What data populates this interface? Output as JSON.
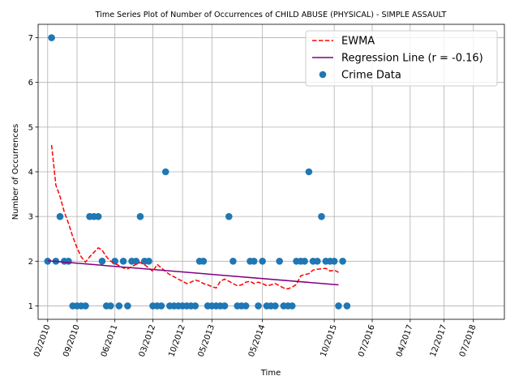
{
  "chart_data": {
    "type": "scatter",
    "title": "Time Series Plot of Number of Occurrences of CHILD ABUSE (PHYSICAL) - SIMPLE ASSAULT",
    "xlabel": "Time",
    "ylabel": "Number of Occurrences",
    "xlim": [
      "2009-11-24",
      "2019-02-10"
    ],
    "ylim": [
      0.7,
      7.3
    ],
    "grid": true,
    "legend_position": "top-right",
    "x_ticks": [
      {
        "date": "2010-02-01",
        "label": "02/2010"
      },
      {
        "date": "2010-09-01",
        "label": "09/2010"
      },
      {
        "date": "2011-06-01",
        "label": "06/2011"
      },
      {
        "date": "2012-03-01",
        "label": "03/2012"
      },
      {
        "date": "2012-10-01",
        "label": "10/2012"
      },
      {
        "date": "2013-05-01",
        "label": "05/2013"
      },
      {
        "date": "2014-05-01",
        "label": "05/2014"
      },
      {
        "date": "2015-10-01",
        "label": "10/2015"
      },
      {
        "date": "2016-07-01",
        "label": "07/2016"
      },
      {
        "date": "2017-04-01",
        "label": "04/2017"
      },
      {
        "date": "2017-12-01",
        "label": "12/2017"
      },
      {
        "date": "2018-07-01",
        "label": "07/2018"
      }
    ],
    "y_ticks": [
      1,
      2,
      3,
      4,
      5,
      6,
      7
    ],
    "series": [
      {
        "name": "Crime Data",
        "kind": "scatter",
        "color": "#1f77b4",
        "points": [
          [
            "2010-02-01",
            2
          ],
          [
            "2010-03-01",
            7
          ],
          [
            "2010-04-01",
            2
          ],
          [
            "2010-05-01",
            3
          ],
          [
            "2010-06-01",
            2
          ],
          [
            "2010-07-01",
            2
          ],
          [
            "2010-08-01",
            1
          ],
          [
            "2010-09-01",
            1
          ],
          [
            "2010-10-01",
            1
          ],
          [
            "2010-11-01",
            1
          ],
          [
            "2010-12-01",
            3
          ],
          [
            "2011-01-01",
            3
          ],
          [
            "2011-02-01",
            3
          ],
          [
            "2011-03-01",
            2
          ],
          [
            "2011-04-01",
            1
          ],
          [
            "2011-05-01",
            1
          ],
          [
            "2011-06-01",
            2
          ],
          [
            "2011-07-01",
            1
          ],
          [
            "2011-08-01",
            2
          ],
          [
            "2011-09-01",
            1
          ],
          [
            "2011-10-01",
            2
          ],
          [
            "2011-11-01",
            2
          ],
          [
            "2011-12-01",
            3
          ],
          [
            "2012-01-01",
            2
          ],
          [
            "2012-02-01",
            2
          ],
          [
            "2012-03-01",
            1
          ],
          [
            "2012-04-01",
            1
          ],
          [
            "2012-05-01",
            1
          ],
          [
            "2012-06-01",
            4
          ],
          [
            "2012-07-01",
            1
          ],
          [
            "2012-08-01",
            1
          ],
          [
            "2012-09-01",
            1
          ],
          [
            "2012-10-01",
            1
          ],
          [
            "2012-11-01",
            1
          ],
          [
            "2012-12-01",
            1
          ],
          [
            "2013-01-01",
            1
          ],
          [
            "2013-02-01",
            2
          ],
          [
            "2013-03-01",
            2
          ],
          [
            "2013-04-01",
            1
          ],
          [
            "2013-05-01",
            1
          ],
          [
            "2013-06-01",
            1
          ],
          [
            "2013-07-01",
            1
          ],
          [
            "2013-08-01",
            1
          ],
          [
            "2013-09-01",
            3
          ],
          [
            "2013-10-01",
            2
          ],
          [
            "2013-11-01",
            1
          ],
          [
            "2013-12-01",
            1
          ],
          [
            "2014-01-01",
            1
          ],
          [
            "2014-02-01",
            2
          ],
          [
            "2014-03-01",
            2
          ],
          [
            "2014-04-01",
            1
          ],
          [
            "2014-05-01",
            2
          ],
          [
            "2014-06-01",
            1
          ],
          [
            "2014-07-01",
            1
          ],
          [
            "2014-08-01",
            1
          ],
          [
            "2014-09-01",
            2
          ],
          [
            "2014-10-01",
            1
          ],
          [
            "2014-11-01",
            1
          ],
          [
            "2014-12-01",
            1
          ],
          [
            "2015-01-01",
            2
          ],
          [
            "2015-02-01",
            2
          ],
          [
            "2015-03-01",
            2
          ],
          [
            "2015-04-01",
            4
          ],
          [
            "2015-05-01",
            2
          ],
          [
            "2015-06-01",
            2
          ],
          [
            "2015-07-01",
            3
          ],
          [
            "2015-08-01",
            2
          ],
          [
            "2015-09-01",
            2
          ],
          [
            "2015-10-01",
            2
          ],
          [
            "2015-11-01",
            1
          ],
          [
            "2015-12-01",
            2
          ],
          [
            "2016-01-01",
            1
          ]
        ]
      },
      {
        "name": "EWMA",
        "kind": "line",
        "color": "#ff0000",
        "dash": true,
        "points": [
          [
            "2010-03-01",
            4.6
          ],
          [
            "2010-04-01",
            3.7
          ],
          [
            "2010-05-01",
            3.45
          ],
          [
            "2010-06-01",
            3.1
          ],
          [
            "2010-07-01",
            2.85
          ],
          [
            "2010-08-01",
            2.55
          ],
          [
            "2010-09-01",
            2.3
          ],
          [
            "2010-10-01",
            2.1
          ],
          [
            "2010-11-01",
            1.98
          ],
          [
            "2010-12-01",
            2.1
          ],
          [
            "2011-01-01",
            2.2
          ],
          [
            "2011-02-01",
            2.3
          ],
          [
            "2011-03-01",
            2.25
          ],
          [
            "2011-04-01",
            2.1
          ],
          [
            "2011-05-01",
            2.0
          ],
          [
            "2011-06-01",
            1.95
          ],
          [
            "2011-07-01",
            1.9
          ],
          [
            "2011-08-01",
            1.85
          ],
          [
            "2011-09-01",
            1.83
          ],
          [
            "2011-10-01",
            1.88
          ],
          [
            "2011-11-01",
            1.93
          ],
          [
            "2011-12-01",
            1.97
          ],
          [
            "2012-01-01",
            1.92
          ],
          [
            "2012-02-01",
            1.85
          ],
          [
            "2012-03-01",
            1.77
          ],
          [
            "2012-04-01",
            1.93
          ],
          [
            "2012-05-01",
            1.85
          ],
          [
            "2012-06-01",
            1.77
          ],
          [
            "2012-07-01",
            1.7
          ],
          [
            "2012-08-01",
            1.65
          ],
          [
            "2012-09-01",
            1.6
          ],
          [
            "2012-10-01",
            1.55
          ],
          [
            "2012-11-01",
            1.5
          ],
          [
            "2012-12-01",
            1.53
          ],
          [
            "2013-01-01",
            1.58
          ],
          [
            "2013-02-01",
            1.55
          ],
          [
            "2013-03-01",
            1.5
          ],
          [
            "2013-04-01",
            1.47
          ],
          [
            "2013-05-01",
            1.43
          ],
          [
            "2013-06-01",
            1.4
          ],
          [
            "2013-07-01",
            1.55
          ],
          [
            "2013-08-01",
            1.6
          ],
          [
            "2013-09-01",
            1.55
          ],
          [
            "2013-10-01",
            1.5
          ],
          [
            "2013-11-01",
            1.45
          ],
          [
            "2013-12-01",
            1.47
          ],
          [
            "2014-01-01",
            1.53
          ],
          [
            "2014-02-01",
            1.55
          ],
          [
            "2014-03-01",
            1.5
          ],
          [
            "2014-04-01",
            1.53
          ],
          [
            "2014-05-01",
            1.5
          ],
          [
            "2014-06-01",
            1.45
          ],
          [
            "2014-07-01",
            1.47
          ],
          [
            "2014-08-01",
            1.5
          ],
          [
            "2014-09-01",
            1.45
          ],
          [
            "2014-10-01",
            1.4
          ],
          [
            "2014-11-01",
            1.38
          ],
          [
            "2014-12-01",
            1.42
          ],
          [
            "2015-01-01",
            1.48
          ],
          [
            "2015-02-01",
            1.67
          ],
          [
            "2015-03-01",
            1.7
          ],
          [
            "2015-04-01",
            1.72
          ],
          [
            "2015-05-01",
            1.8
          ],
          [
            "2015-06-01",
            1.82
          ],
          [
            "2015-07-01",
            1.83
          ],
          [
            "2015-08-01",
            1.84
          ],
          [
            "2015-09-01",
            1.78
          ],
          [
            "2015-10-01",
            1.8
          ],
          [
            "2015-11-01",
            1.75
          ]
        ]
      },
      {
        "name": "Regression Line (r = -0.16)",
        "kind": "line",
        "color": "#800080",
        "dash": false,
        "points": [
          [
            "2010-02-01",
            2.01
          ],
          [
            "2015-11-01",
            1.47
          ]
        ]
      }
    ]
  }
}
